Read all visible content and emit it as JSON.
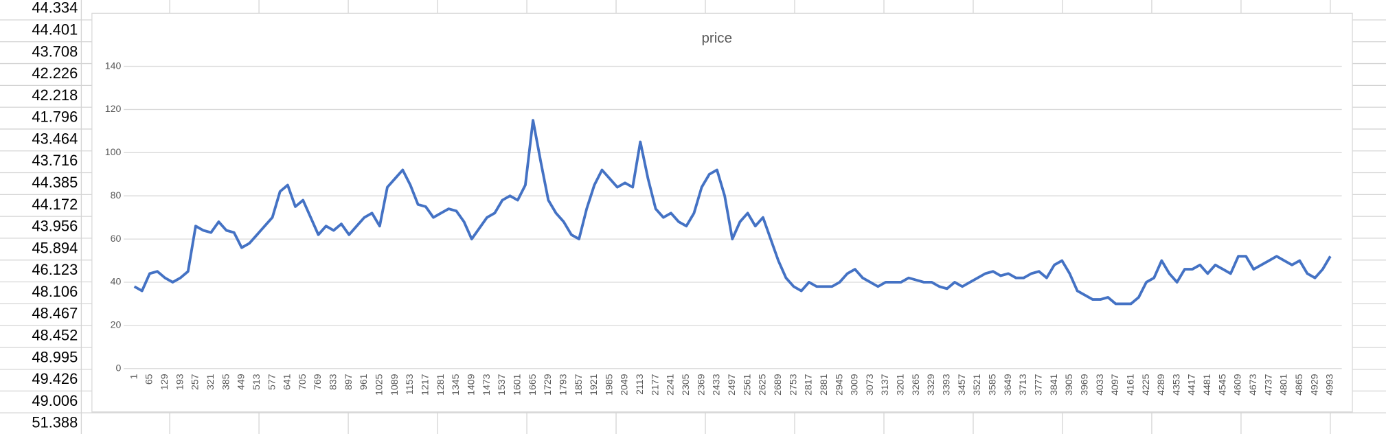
{
  "sheet": {
    "cells": [
      "44.334",
      "44.401",
      "43.708",
      "42.226",
      "42.218",
      "41.796",
      "43.464",
      "43.716",
      "44.385",
      "44.172",
      "43.956",
      "45.894",
      "46.123",
      "48.106",
      "48.467",
      "48.452",
      "48.995",
      "49.426",
      "49.006",
      "51.388"
    ]
  },
  "chart_data": {
    "type": "line",
    "title": "price",
    "color": "#4472c4",
    "grid": true,
    "ylim": [
      0,
      140
    ],
    "yticks": [
      0,
      20,
      40,
      60,
      80,
      100,
      120,
      140
    ],
    "categories": [
      "1",
      null,
      "65",
      null,
      "129",
      null,
      "193",
      null,
      "257",
      null,
      "321",
      null,
      "385",
      null,
      "449",
      null,
      "513",
      null,
      "577",
      null,
      "641",
      null,
      "705",
      null,
      "769",
      null,
      "833",
      null,
      "897",
      null,
      "961",
      null,
      "1025",
      null,
      "1089",
      null,
      "1153",
      null,
      "1217",
      null,
      "1281",
      null,
      "1345",
      null,
      "1409",
      null,
      "1473",
      null,
      "1537",
      null,
      "1601",
      null,
      "1665",
      null,
      "1729",
      null,
      "1793",
      null,
      "1857",
      null,
      "1921",
      null,
      "1985",
      null,
      "2049",
      null,
      "2113",
      null,
      "2177",
      null,
      "2241",
      null,
      "2305",
      null,
      "2369",
      null,
      "2433",
      null,
      "2497",
      null,
      "2561",
      null,
      "2625",
      null,
      "2689",
      null,
      "2753",
      null,
      "2817",
      null,
      "2881",
      null,
      "2945",
      null,
      "3009",
      null,
      "3073",
      null,
      "3137",
      null,
      "3201",
      null,
      "3265",
      null,
      "3329",
      null,
      "3393",
      null,
      "3457",
      null,
      "3521",
      null,
      "3585",
      null,
      "3649",
      null,
      "3713",
      null,
      "3777",
      null,
      "3841",
      null,
      "3905",
      null,
      "3969",
      null,
      "4033",
      null,
      "4097",
      null,
      "4161",
      null,
      "4225",
      null,
      "4289",
      null,
      "4353",
      null,
      "4417",
      null,
      "4481",
      null,
      "4545",
      null,
      "4609",
      null,
      "4673",
      null,
      "4737",
      null,
      "4801",
      null,
      "4865",
      null,
      "4929",
      null,
      "4993"
    ],
    "values": [
      38,
      36,
      44,
      45,
      42,
      40,
      42,
      45,
      66,
      64,
      63,
      68,
      64,
      63,
      56,
      58,
      62,
      66,
      70,
      82,
      85,
      75,
      78,
      70,
      62,
      66,
      64,
      67,
      62,
      66,
      70,
      72,
      66,
      84,
      88,
      92,
      85,
      76,
      75,
      70,
      72,
      74,
      73,
      68,
      60,
      65,
      70,
      72,
      78,
      80,
      78,
      85,
      115,
      96,
      78,
      72,
      68,
      62,
      60,
      74,
      85,
      92,
      88,
      84,
      86,
      84,
      105,
      88,
      74,
      70,
      72,
      68,
      66,
      72,
      84,
      90,
      92,
      80,
      60,
      68,
      72,
      66,
      70,
      60,
      50,
      42,
      38,
      36,
      40,
      38,
      38,
      38,
      40,
      44,
      46,
      42,
      40,
      38,
      40,
      40,
      40,
      42,
      41,
      40,
      40,
      38,
      37,
      40,
      38,
      40,
      42,
      44,
      45,
      43,
      44,
      42,
      42,
      44,
      45,
      42,
      48,
      50,
      44,
      36,
      34,
      32,
      32,
      33,
      30,
      30,
      30,
      33,
      40,
      42,
      50,
      44,
      40,
      46,
      46,
      48,
      44,
      48,
      46,
      44,
      52,
      52,
      46,
      48,
      50,
      52,
      50,
      48,
      50,
      44,
      42,
      46,
      52
    ]
  }
}
